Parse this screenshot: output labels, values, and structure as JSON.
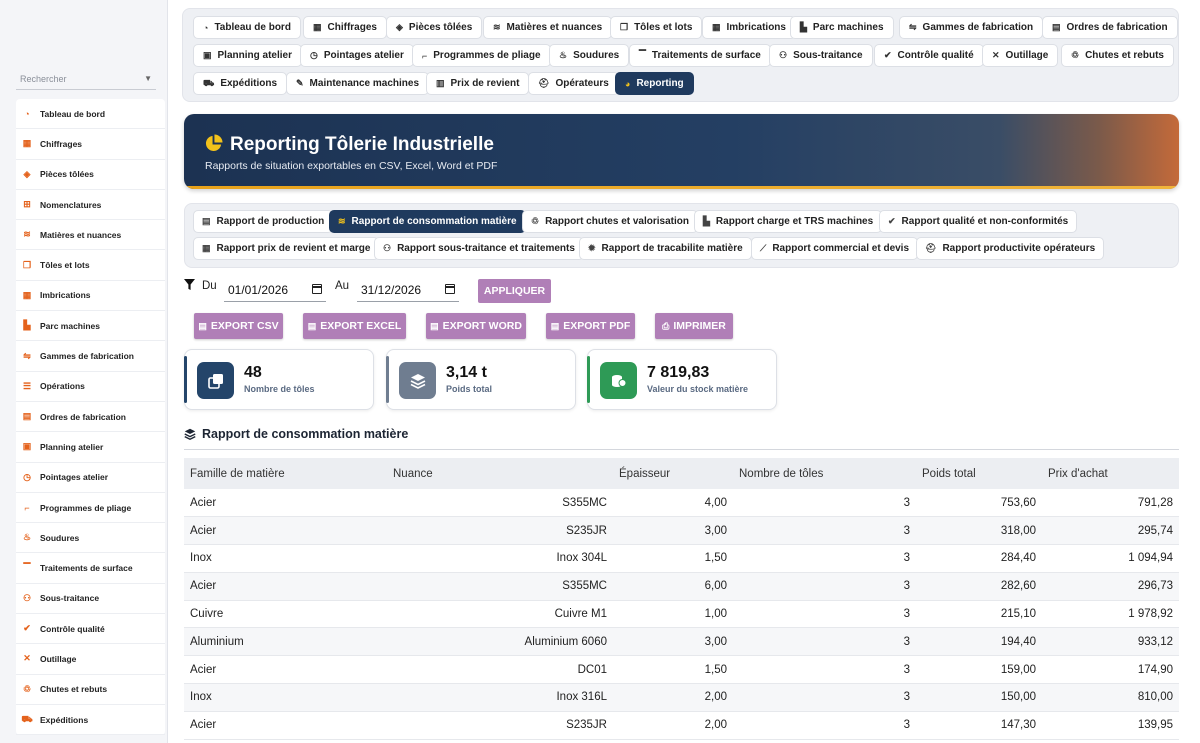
{
  "sidebar": {
    "search_placeholder": "Rechercher",
    "items": [
      {
        "label": "Tableau de bord",
        "icon": "dashboard-icon"
      },
      {
        "label": "Chiffrages",
        "icon": "calculator-icon"
      },
      {
        "label": "Pièces tôlées",
        "icon": "box-icon"
      },
      {
        "label": "Nomenclatures",
        "icon": "sitemap-icon"
      },
      {
        "label": "Matières et nuances",
        "icon": "layers-icon"
      },
      {
        "label": "Tôles et lots",
        "icon": "copy-icon"
      },
      {
        "label": "Imbrications",
        "icon": "grid-icon"
      },
      {
        "label": "Parc machines",
        "icon": "industry-icon"
      },
      {
        "label": "Gammes de fabrication",
        "icon": "route-icon"
      },
      {
        "label": "Opérations",
        "icon": "list-icon"
      },
      {
        "label": "Ordres de fabrication",
        "icon": "clipboard-icon"
      },
      {
        "label": "Planning atelier",
        "icon": "calendar-icon"
      },
      {
        "label": "Pointages atelier",
        "icon": "clock-icon"
      },
      {
        "label": "Programmes de pliage",
        "icon": "bend-icon"
      },
      {
        "label": "Soudures",
        "icon": "fire-icon"
      },
      {
        "label": "Traitements de surface",
        "icon": "paint-roller-icon"
      },
      {
        "label": "Sous-traitance",
        "icon": "handshake-icon"
      },
      {
        "label": "Contrôle qualité",
        "icon": "check-double-icon"
      },
      {
        "label": "Outillage",
        "icon": "tools-icon"
      },
      {
        "label": "Chutes et rebuts",
        "icon": "recycle-icon"
      },
      {
        "label": "Expéditions",
        "icon": "truck-icon"
      }
    ]
  },
  "topnav": {
    "items": [
      {
        "label": "Tableau de bord",
        "icon": "dashboard-icon"
      },
      {
        "label": "Chiffrages",
        "icon": "calculator-icon"
      },
      {
        "label": "Pièces tôlées",
        "icon": "box-icon"
      },
      {
        "label": "Matières et nuances",
        "icon": "layers-icon"
      },
      {
        "label": "Tôles et lots",
        "icon": "copy-icon"
      },
      {
        "label": "Imbrications",
        "icon": "grid-icon"
      },
      {
        "label": "Parc machines",
        "icon": "industry-icon"
      },
      {
        "label": "Gammes de fabrication",
        "icon": "route-icon"
      },
      {
        "label": "Ordres de fabrication",
        "icon": "clipboard-icon"
      },
      {
        "label": "Planning atelier",
        "icon": "calendar-icon"
      },
      {
        "label": "Pointages atelier",
        "icon": "clock-icon"
      },
      {
        "label": "Programmes de pliage",
        "icon": "bend-icon"
      },
      {
        "label": "Soudures",
        "icon": "fire-icon"
      },
      {
        "label": "Traitements de surface",
        "icon": "paint-roller-icon"
      },
      {
        "label": "Sous-traitance",
        "icon": "handshake-icon"
      },
      {
        "label": "Contrôle qualité",
        "icon": "check-double-icon"
      },
      {
        "label": "Outillage",
        "icon": "tools-icon"
      },
      {
        "label": "Chutes et rebuts",
        "icon": "recycle-icon"
      },
      {
        "label": "Expéditions",
        "icon": "truck-icon"
      },
      {
        "label": "Maintenance machines",
        "icon": "wrench-icon"
      },
      {
        "label": "Prix de revient",
        "icon": "receipt-icon"
      },
      {
        "label": "Opérateurs",
        "icon": "hard-hat-icon"
      },
      {
        "label": "Reporting",
        "icon": "pie-chart-icon",
        "active": true
      }
    ]
  },
  "banner": {
    "title": "Reporting Tôlerie Industrielle",
    "subtitle": "Rapports de situation exportables en CSV, Excel, Word et PDF",
    "icon": "pie-chart-icon"
  },
  "report_tabs": [
    {
      "label": "Rapport de production",
      "icon": "clipboard-icon"
    },
    {
      "label": "Rapport de consommation matière",
      "icon": "layers-icon",
      "active": true
    },
    {
      "label": "Rapport chutes et valorisation",
      "icon": "recycle-icon"
    },
    {
      "label": "Rapport charge et TRS machines",
      "icon": "industry-icon"
    },
    {
      "label": "Rapport qualité et non-conformités",
      "icon": "check-double-icon"
    },
    {
      "label": "Rapport prix de revient et marge",
      "icon": "calculator-icon"
    },
    {
      "label": "Rapport sous-traitance et traitements",
      "icon": "handshake-icon"
    },
    {
      "label": "Rapport de tracabilite matière",
      "icon": "gear-icon"
    },
    {
      "label": "Rapport commercial et devis",
      "icon": "chart-line-icon"
    },
    {
      "label": "Rapport productivite opérateurs",
      "icon": "hard-hat-icon"
    }
  ],
  "filter": {
    "from_label": "Du",
    "from_value": "01/01/2026",
    "to_label": "Au",
    "to_value": "31/12/2026",
    "apply_label": "APPLIQUER"
  },
  "exports": {
    "csv": "EXPORT CSV",
    "excel": "EXPORT EXCEL",
    "word": "EXPORT WORD",
    "pdf": "EXPORT PDF",
    "print": "IMPRIMER"
  },
  "kpis": [
    {
      "value": "48",
      "label": "Nombre de tôles",
      "color": "#24456a",
      "icon": "copy-icon"
    },
    {
      "value": "3,14 t",
      "label": "Poids total",
      "color": "#6f7d90",
      "icon": "layers-icon"
    },
    {
      "value": "7 819,83",
      "label": "Valeur du stock matière",
      "color": "#2e9a56",
      "icon": "coins-icon"
    }
  ],
  "section": {
    "title": "Rapport de consommation matière",
    "icon": "layers-icon"
  },
  "table": {
    "headers": [
      "Famille de matière",
      "Nuance",
      "Épaisseur",
      "Nombre de tôles",
      "Poids total",
      "Prix d'achat"
    ],
    "rows": [
      [
        "Acier",
        "S355MC",
        "4,00",
        "3",
        "753,60",
        "791,28"
      ],
      [
        "Acier",
        "S235JR",
        "3,00",
        "3",
        "318,00",
        "295,74"
      ],
      [
        "Inox",
        "Inox 304L",
        "1,50",
        "3",
        "284,40",
        "1 094,94"
      ],
      [
        "Acier",
        "S355MC",
        "6,00",
        "3",
        "282,60",
        "296,73"
      ],
      [
        "Cuivre",
        "Cuivre M1",
        "1,00",
        "3",
        "215,10",
        "1 978,92"
      ],
      [
        "Aluminium",
        "Aluminium 6060",
        "3,00",
        "3",
        "194,40",
        "933,12"
      ],
      [
        "Acier",
        "DC01",
        "1,50",
        "3",
        "159,00",
        "174,90"
      ],
      [
        "Inox",
        "Inox 316L",
        "2,00",
        "3",
        "150,00",
        "810,00"
      ],
      [
        "Acier",
        "S235JR",
        "2,00",
        "3",
        "147,30",
        "139,95"
      ]
    ]
  }
}
